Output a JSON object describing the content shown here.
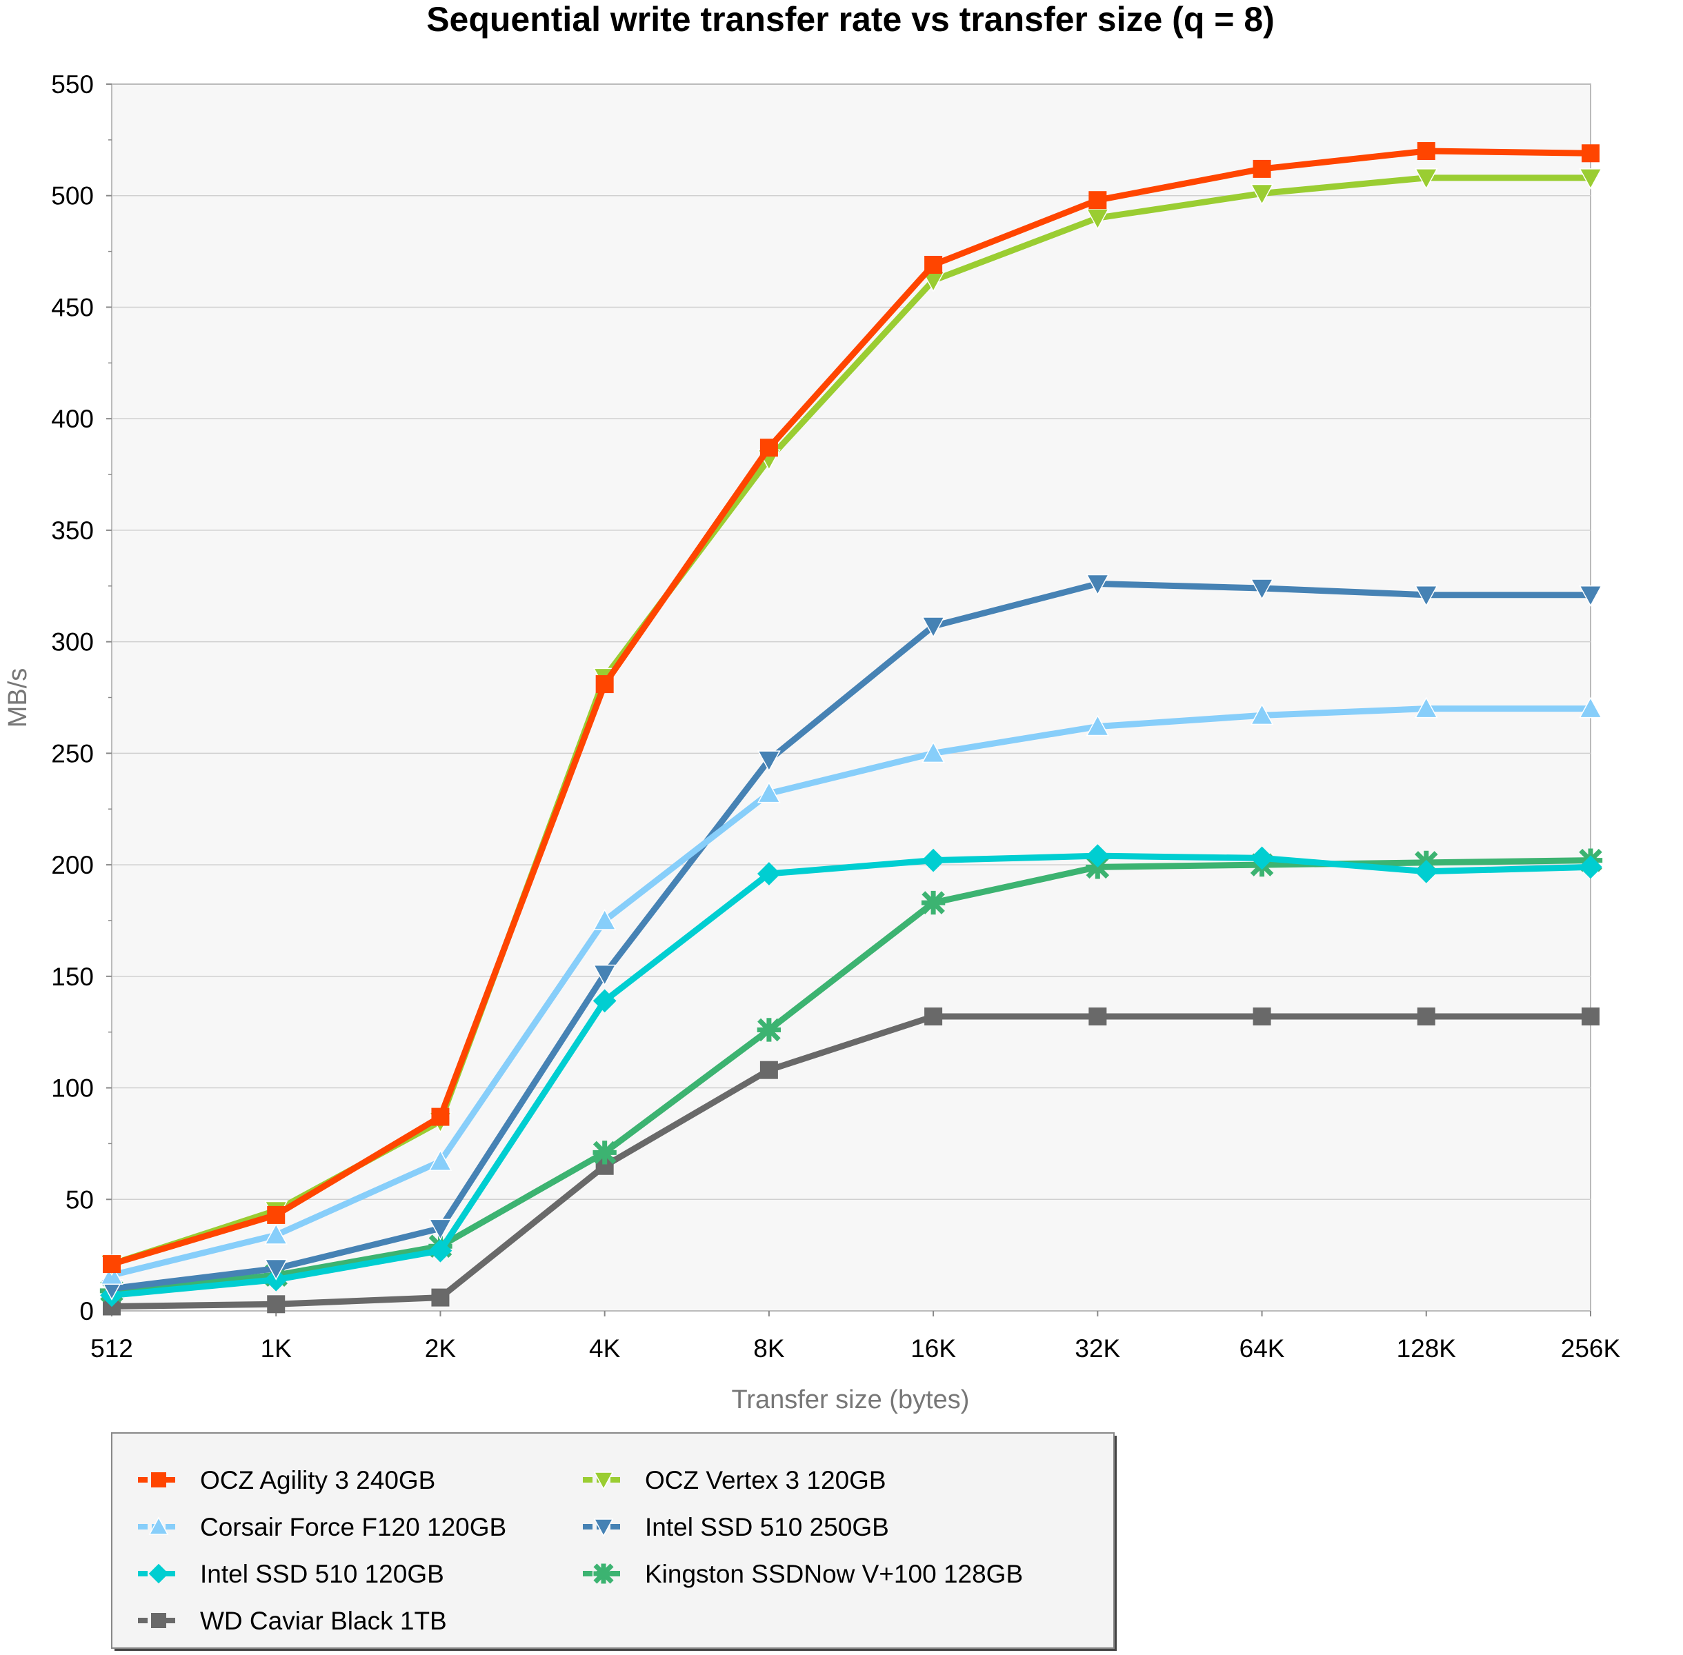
{
  "chart_data": {
    "type": "line",
    "title": "Sequential write transfer rate vs transfer size (q = 8)",
    "xlabel": "Transfer size (bytes)",
    "ylabel": "MB/s",
    "categories": [
      "512",
      "1K",
      "2K",
      "4K",
      "8K",
      "16K",
      "32K",
      "64K",
      "128K",
      "256K"
    ],
    "ylim": [
      0,
      550
    ],
    "yticks": [
      0,
      50,
      100,
      150,
      200,
      250,
      300,
      350,
      400,
      450,
      500,
      550
    ],
    "grid": true,
    "legend_placement": "bottom-left",
    "series": [
      {
        "name": "OCZ Agility 3 240GB",
        "color": "#ff4500",
        "marker": "square",
        "values": [
          21,
          43,
          87,
          281,
          387,
          469,
          498,
          512,
          520,
          519
        ]
      },
      {
        "name": "OCZ Vertex 3 120GB",
        "color": "#9acd32",
        "marker": "triangle-down",
        "values": [
          21,
          45,
          85,
          284,
          382,
          462,
          490,
          501,
          508,
          508
        ]
      },
      {
        "name": "Corsair Force F120 120GB",
        "color": "#87cefa",
        "marker": "triangle-up",
        "values": [
          16,
          34,
          67,
          175,
          232,
          250,
          262,
          267,
          270,
          270
        ]
      },
      {
        "name": "Intel SSD 510 250GB",
        "color": "#4682b4",
        "marker": "triangle-down",
        "values": [
          10,
          19,
          37,
          151,
          247,
          307,
          326,
          324,
          321,
          321
        ]
      },
      {
        "name": "Intel SSD 510 120GB",
        "color": "#00ced1",
        "marker": "diamond",
        "values": [
          7,
          14,
          27,
          139,
          196,
          202,
          204,
          203,
          197,
          199
        ]
      },
      {
        "name": "Kingston SSDNow V+100 128GB",
        "color": "#3cb371",
        "marker": "x",
        "values": [
          9,
          16,
          29,
          71,
          126,
          183,
          199,
          200,
          201,
          202
        ]
      },
      {
        "name": "WD Caviar Black 1TB",
        "color": "#696969",
        "marker": "square",
        "values": [
          2,
          3,
          6,
          65,
          108,
          132,
          132,
          132,
          132,
          132
        ]
      }
    ]
  }
}
